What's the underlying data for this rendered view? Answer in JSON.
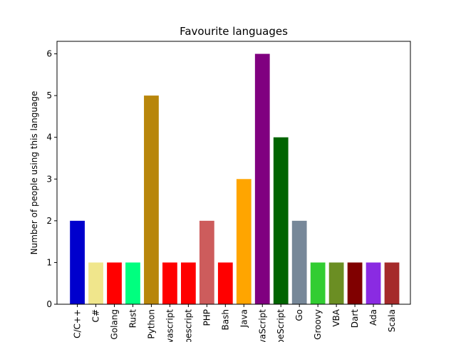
{
  "chart_data": {
    "type": "bar",
    "title": "Favourite languages",
    "xlabel": "",
    "ylabel": "Number of people using this language",
    "ylim": [
      0,
      6.3
    ],
    "yticks": [
      0,
      1,
      2,
      3,
      4,
      5,
      6
    ],
    "grid": false,
    "categories": [
      "C/C++",
      "C#",
      "Golang",
      "Rust",
      "Python",
      "Javascript",
      "Typescript",
      "PHP",
      "Bash",
      "Java",
      "JavaScript",
      "TypeScript",
      "Go",
      "Groovy",
      "VBA",
      "Dart",
      "Ada",
      "Scala"
    ],
    "values": [
      2,
      1,
      1,
      1,
      5,
      1,
      1,
      2,
      1,
      3,
      6,
      4,
      2,
      1,
      1,
      1,
      1,
      1
    ],
    "colors": [
      "#0000cd",
      "#f0e68c",
      "#ff0000",
      "#00ff7f",
      "#b8860b",
      "#ff0000",
      "#ff0000",
      "#cd5c5c",
      "#ff0000",
      "#ffa500",
      "#800080",
      "#006400",
      "#778899",
      "#32cd32",
      "#6b8e23",
      "#800000",
      "#8a2be2",
      "#a52a2a"
    ]
  }
}
